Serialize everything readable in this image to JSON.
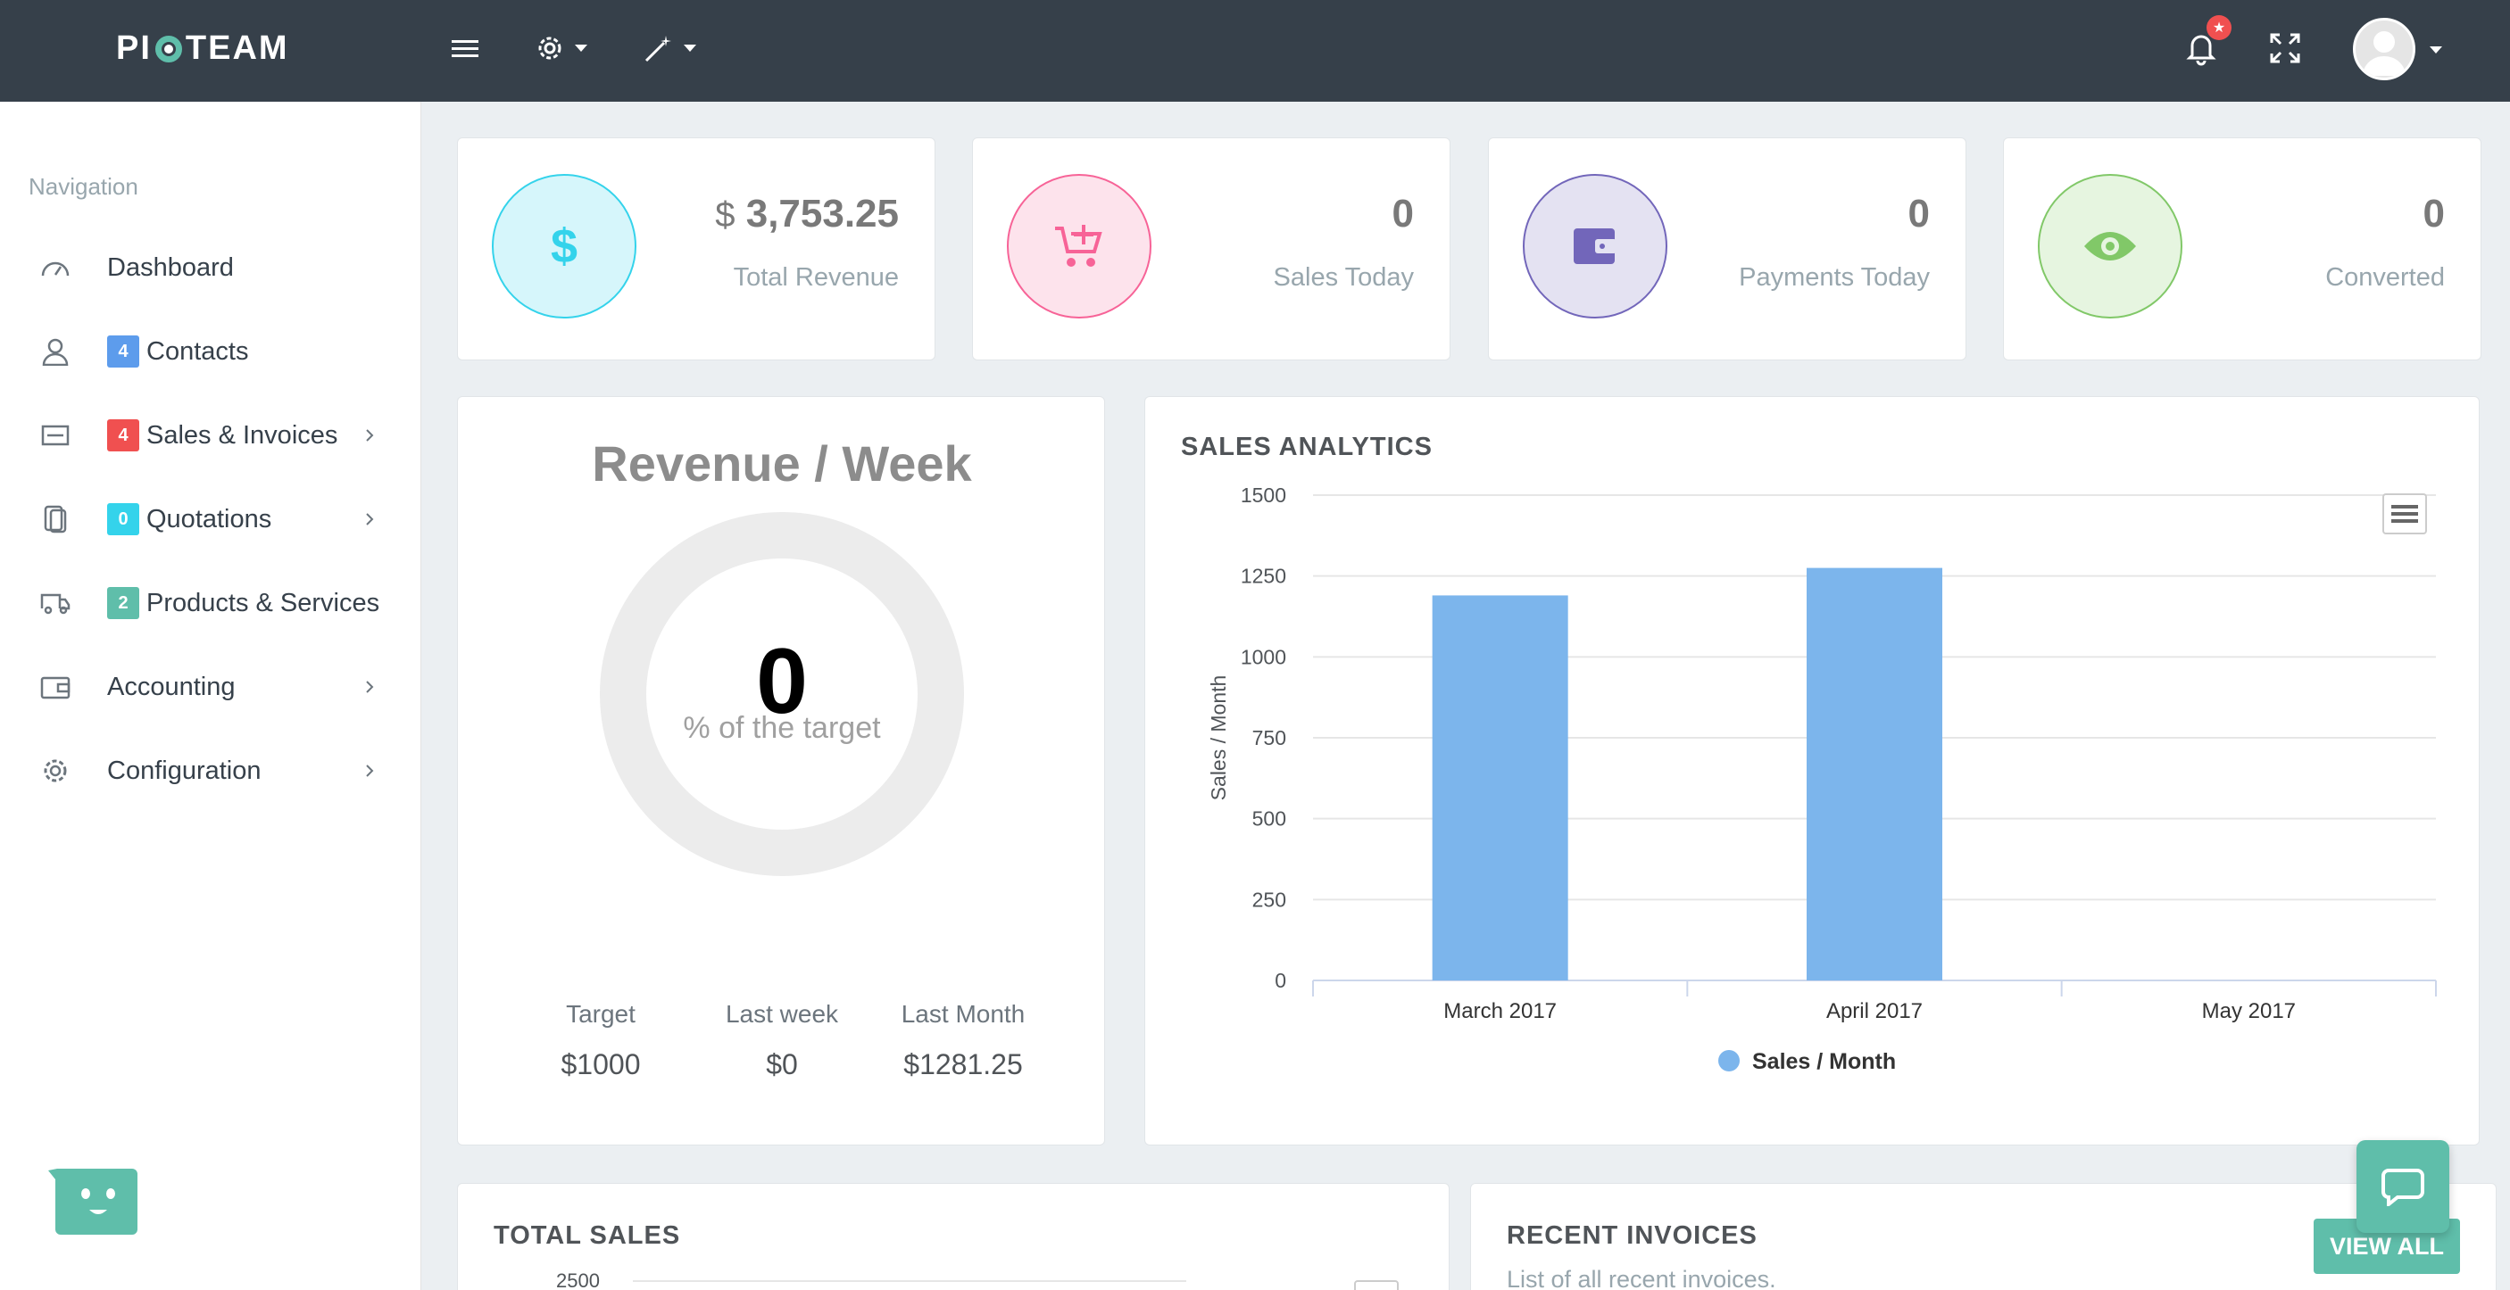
{
  "brand": {
    "logo_text_left": "PI",
    "logo_text_right": "TEAM"
  },
  "navigation": {
    "title": "Navigation",
    "items": [
      {
        "label": "Dashboard",
        "icon": "dashboard-icon"
      },
      {
        "label": "Contacts",
        "icon": "user-icon",
        "badge": "4",
        "badge_color": "#5d9cec"
      },
      {
        "label": "Sales & Invoices",
        "icon": "invoice-icon",
        "badge": "4",
        "badge_color": "#f05050",
        "has_submenu": true
      },
      {
        "label": "Quotations",
        "icon": "quotation-icon",
        "badge": "0",
        "badge_color": "#34d3eb",
        "has_submenu": true
      },
      {
        "label": "Products & Services",
        "icon": "truck-icon",
        "badge": "2",
        "badge_color": "#5fbeaa"
      },
      {
        "label": "Accounting",
        "icon": "wallet-icon",
        "has_submenu": true
      },
      {
        "label": "Configuration",
        "icon": "gear-icon",
        "has_submenu": true
      }
    ]
  },
  "topbar": {
    "notification_badge": "★"
  },
  "stats": [
    {
      "currency": "$",
      "value": "3,753.25",
      "caption": "Total Revenue",
      "icon": "dollar-icon",
      "color": "#34d3eb",
      "bg": "#d6f6fb"
    },
    {
      "value": "0",
      "caption": "Sales Today",
      "icon": "cart-add-icon",
      "color": "#f76397",
      "bg": "#fde3ec"
    },
    {
      "value": "0",
      "caption": "Payments Today",
      "icon": "wallet-icon",
      "color": "#7266ba",
      "bg": "#e4e2f2"
    },
    {
      "value": "0",
      "caption": "Converted",
      "icon": "eye-icon",
      "color": "#81c868",
      "bg": "#e6f5e0"
    }
  ],
  "revenue_week": {
    "title": "Revenue / Week",
    "percent_value": "0",
    "percent_caption": "% of the target",
    "percent_fraction": 0,
    "columns": [
      {
        "label": "Target",
        "value": "$1000"
      },
      {
        "label": "Last week",
        "value": "$0"
      },
      {
        "label": "Last Month",
        "value": "$1281.25"
      }
    ]
  },
  "sales_analytics": {
    "title": "SALES ANALYTICS"
  },
  "chart_data": {
    "type": "bar",
    "title": "",
    "categories": [
      "March 2017",
      "April 2017",
      "May 2017"
    ],
    "series": [
      {
        "name": "Sales  /  Month",
        "values": [
          1190,
          1275,
          0
        ],
        "color": "#7cb5ec"
      }
    ],
    "ylabel": "Sales / Month",
    "xlabel": "",
    "ylim": [
      0,
      1500
    ],
    "yticks": [
      "0",
      "250",
      "500",
      "750",
      "1000",
      "1250",
      "1500"
    ],
    "grid": true,
    "legend": "bottom-center"
  },
  "total_sales": {
    "title": "TOTAL SALES",
    "first_tick": "2500"
  },
  "recent_invoices": {
    "title": "RECENT INVOICES",
    "subtitle": "List of all recent invoices.",
    "button_label": "VIEW ALL"
  }
}
